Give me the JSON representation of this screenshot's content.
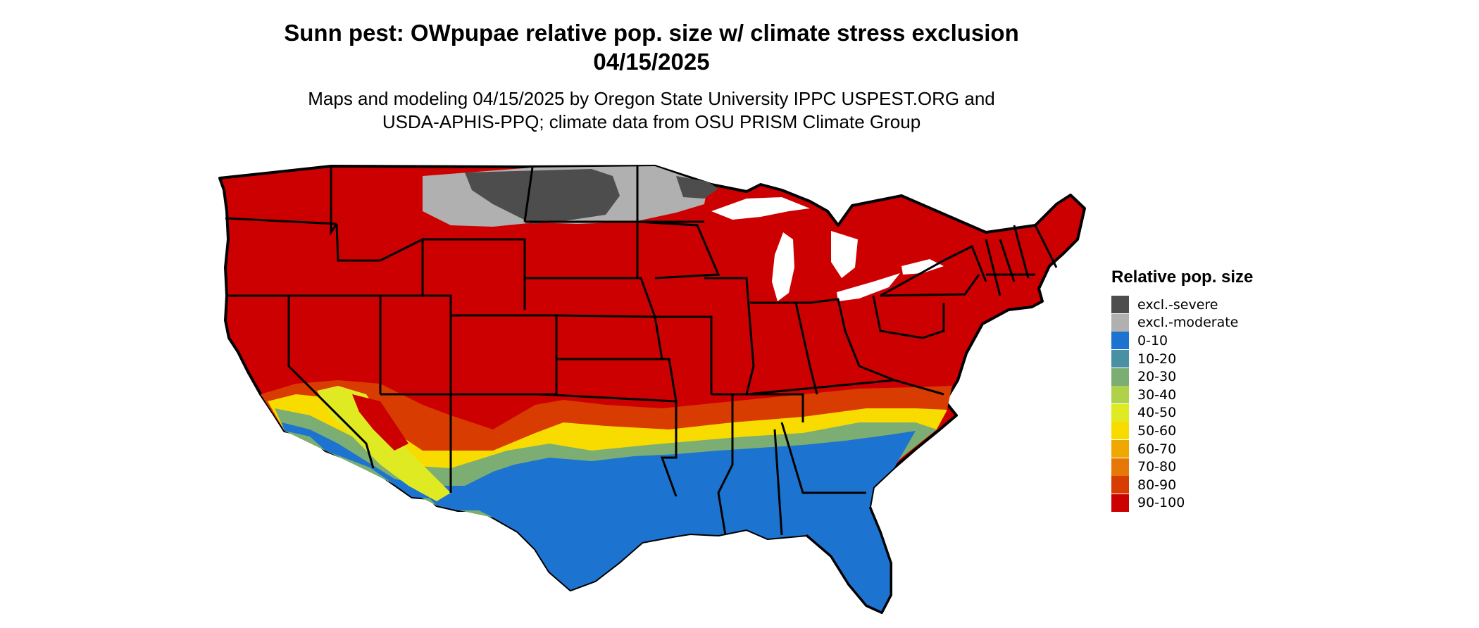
{
  "title_line1": "Sunn pest: OWpupae relative pop. size w/ climate stress exclusion",
  "title_line2": "04/15/2025",
  "subtitle_line1": "Maps and modeling 04/15/2025 by Oregon State University IPPC USPEST.ORG and",
  "subtitle_line2": "USDA-APHIS-PPQ; climate data from OSU PRISM Climate Group",
  "legend": {
    "title": "Relative pop. size",
    "items": [
      {
        "label": "excl.-severe",
        "color": "#4d4d4d"
      },
      {
        "label": "excl.-moderate",
        "color": "#b0b0b0"
      },
      {
        "label": "0-10",
        "color": "#1c74d0"
      },
      {
        "label": "10-20",
        "color": "#4a90a4"
      },
      {
        "label": "20-30",
        "color": "#7cae74"
      },
      {
        "label": "30-40",
        "color": "#b0d24a"
      },
      {
        "label": "40-50",
        "color": "#e0ea22"
      },
      {
        "label": "50-60",
        "color": "#f8dc00"
      },
      {
        "label": "60-70",
        "color": "#f0a800"
      },
      {
        "label": "70-80",
        "color": "#e67808"
      },
      {
        "label": "80-90",
        "color": "#d83c00"
      },
      {
        "label": "90-100",
        "color": "#cc0000"
      }
    ]
  }
}
